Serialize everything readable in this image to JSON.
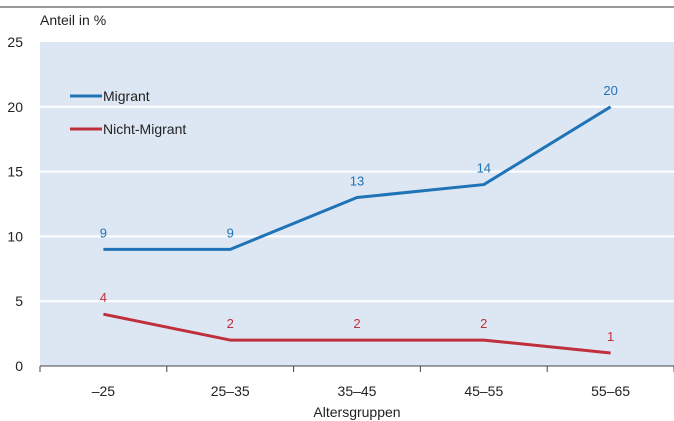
{
  "chart_data": {
    "type": "line",
    "ylabel": "Anteil in %",
    "xlabel": "Altersgruppen",
    "categories": [
      "–25",
      "25–35",
      "35–45",
      "45–55",
      "55–65"
    ],
    "ylim": [
      0,
      25
    ],
    "yticks": [
      0,
      5,
      10,
      15,
      20,
      25
    ],
    "grid": true,
    "legend_position": "top-left",
    "series": [
      {
        "name": "Migrant",
        "values": [
          9,
          9,
          13,
          14,
          20
        ],
        "color": "#1f73b7"
      },
      {
        "name": "Nicht-Migrant",
        "values": [
          4,
          2,
          2,
          2,
          1
        ],
        "color": "#c0303c"
      }
    ],
    "plot_background": "#dde6f3"
  }
}
